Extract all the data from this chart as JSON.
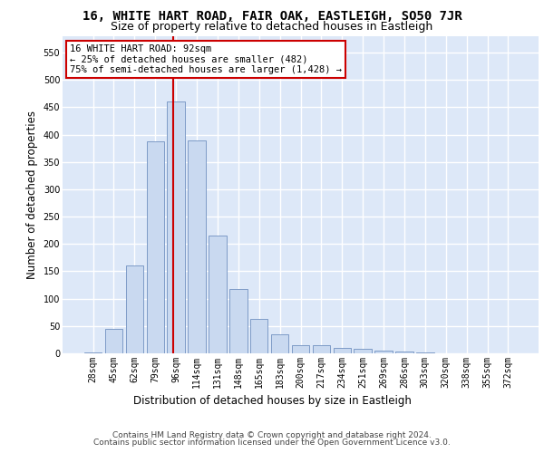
{
  "title": "16, WHITE HART ROAD, FAIR OAK, EASTLEIGH, SO50 7JR",
  "subtitle": "Size of property relative to detached houses in Eastleigh",
  "xlabel": "Distribution of detached houses by size in Eastleigh",
  "ylabel": "Number of detached properties",
  "categories": [
    "28sqm",
    "45sqm",
    "62sqm",
    "79sqm",
    "96sqm",
    "114sqm",
    "131sqm",
    "148sqm",
    "165sqm",
    "183sqm",
    "200sqm",
    "217sqm",
    "234sqm",
    "251sqm",
    "269sqm",
    "286sqm",
    "303sqm",
    "320sqm",
    "338sqm",
    "355sqm",
    "372sqm"
  ],
  "values": [
    2,
    44,
    160,
    388,
    460,
    390,
    215,
    118,
    63,
    35,
    15,
    15,
    10,
    8,
    5,
    3,
    1,
    0,
    0,
    0,
    0
  ],
  "bar_color": "#c9d9f0",
  "bar_edge_color": "#7090c0",
  "annotation_text_line1": "16 WHITE HART ROAD: 92sqm",
  "annotation_text_line2": "← 25% of detached houses are smaller (482)",
  "annotation_text_line3": "75% of semi-detached houses are larger (1,428) →",
  "vline_color": "#cc0000",
  "footer1": "Contains HM Land Registry data © Crown copyright and database right 2024.",
  "footer2": "Contains public sector information licensed under the Open Government Licence v3.0.",
  "ylim": [
    0,
    580
  ],
  "bg_color": "#dde8f8",
  "grid_color": "#ffffff",
  "title_fontsize": 10,
  "subtitle_fontsize": 9,
  "axis_label_fontsize": 8.5,
  "tick_fontsize": 7,
  "footer_fontsize": 6.5,
  "annotation_fontsize": 7.5,
  "vline_x": 3.85
}
